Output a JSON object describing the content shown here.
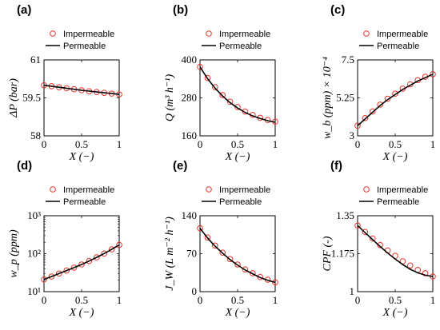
{
  "chart_data": [
    {
      "id": "a",
      "panel_label": "(a)",
      "type": "line",
      "xlabel": "X (−)",
      "ylabel": "ΔP (bar)",
      "xlim": [
        0,
        1
      ],
      "ylim": [
        58,
        61
      ],
      "yscale": "linear",
      "xticks": [
        0,
        0.5,
        1
      ],
      "xtick_labels": [
        "0",
        "0.5",
        "1"
      ],
      "yticks": [
        58,
        59.5,
        61
      ],
      "ytick_labels": [
        "58",
        "59.5",
        "61"
      ],
      "legend": {
        "placement": "top",
        "entries": [
          "Impermeable",
          "Permeable"
        ]
      },
      "series": [
        {
          "name": "Impermeable",
          "marker": "circle",
          "color": "#e8332a",
          "x": [
            0,
            0.1,
            0.2,
            0.3,
            0.4,
            0.5,
            0.6,
            0.7,
            0.8,
            0.9,
            1
          ],
          "y": [
            60.0,
            59.96,
            59.92,
            59.88,
            59.84,
            59.8,
            59.76,
            59.73,
            59.7,
            59.67,
            59.64
          ]
        },
        {
          "name": "Permeable",
          "marker": "line",
          "color": "#000000",
          "x": [
            0,
            0.25,
            0.5,
            0.75,
            1
          ],
          "y": [
            60.0,
            59.9,
            59.8,
            59.72,
            59.64
          ]
        }
      ]
    },
    {
      "id": "b",
      "panel_label": "(b)",
      "type": "line",
      "xlabel": "X (−)",
      "ylabel": "Q (m³ h⁻¹)",
      "xlim": [
        0,
        1
      ],
      "ylim": [
        160,
        400
      ],
      "yscale": "linear",
      "xticks": [
        0,
        0.5,
        1
      ],
      "xtick_labels": [
        "0",
        "0.5",
        "1"
      ],
      "yticks": [
        160,
        280,
        400
      ],
      "ytick_labels": [
        "160",
        "280",
        "400"
      ],
      "legend": {
        "placement": "top",
        "entries": [
          "Impermeable",
          "Permeable"
        ]
      },
      "series": [
        {
          "name": "Impermeable",
          "marker": "circle",
          "color": "#e8332a",
          "x": [
            0,
            0.1,
            0.2,
            0.3,
            0.4,
            0.5,
            0.6,
            0.7,
            0.8,
            0.9,
            1
          ],
          "y": [
            378,
            343,
            314,
            289,
            268,
            251,
            237,
            226,
            217,
            210,
            205
          ]
        },
        {
          "name": "Permeable",
          "marker": "line",
          "color": "#000000",
          "x": [
            0,
            0.1,
            0.2,
            0.3,
            0.4,
            0.5,
            0.6,
            0.7,
            0.8,
            0.9,
            1
          ],
          "y": [
            378,
            341,
            311,
            286,
            265,
            248,
            234,
            223,
            215,
            208,
            203
          ]
        }
      ]
    },
    {
      "id": "c",
      "panel_label": "(c)",
      "type": "line",
      "xlabel": "X (−)",
      "ylabel": "w_b (ppm) × 10⁻⁴",
      "xlim": [
        0,
        1
      ],
      "ylim": [
        3,
        7.5
      ],
      "yscale": "linear",
      "xticks": [
        0,
        0.5,
        1
      ],
      "xtick_labels": [
        "0",
        "0.5",
        "1"
      ],
      "yticks": [
        3,
        5.25,
        7.5
      ],
      "ytick_labels": [
        "3",
        "5.25",
        "7.5"
      ],
      "legend": {
        "placement": "top",
        "entries": [
          "Impermeable",
          "Permeable"
        ]
      },
      "series": [
        {
          "name": "Impermeable",
          "marker": "circle",
          "color": "#e8332a",
          "x": [
            0,
            0.1,
            0.2,
            0.3,
            0.4,
            0.5,
            0.6,
            0.7,
            0.8,
            0.9,
            1
          ],
          "y": [
            3.6,
            4.05,
            4.45,
            4.85,
            5.2,
            5.5,
            5.8,
            6.05,
            6.3,
            6.5,
            6.65
          ]
        },
        {
          "name": "Permeable",
          "marker": "line",
          "color": "#000000",
          "x": [
            0,
            0.1,
            0.2,
            0.3,
            0.4,
            0.5,
            0.6,
            0.7,
            0.8,
            0.9,
            1
          ],
          "y": [
            3.6,
            4.0,
            4.4,
            4.8,
            5.15,
            5.45,
            5.75,
            6.0,
            6.25,
            6.45,
            6.65
          ]
        }
      ]
    },
    {
      "id": "d",
      "panel_label": "(d)",
      "type": "line",
      "xlabel": "X (−)",
      "ylabel": "w_p (ppm)",
      "xlim": [
        0,
        1
      ],
      "ylim": [
        10,
        1000
      ],
      "yscale": "log",
      "xticks": [
        0,
        0.5,
        1
      ],
      "xtick_labels": [
        "0",
        "0.5",
        "1"
      ],
      "yticks": [
        10,
        100,
        1000
      ],
      "ytick_labels": [
        "10¹",
        "10²",
        "10³"
      ],
      "legend": {
        "placement": "top",
        "entries": [
          "Impermeable",
          "Permeable"
        ]
      },
      "series": [
        {
          "name": "Impermeable",
          "marker": "circle",
          "color": "#e8332a",
          "x": [
            0,
            0.1,
            0.2,
            0.3,
            0.4,
            0.5,
            0.6,
            0.7,
            0.8,
            0.9,
            1
          ],
          "y": [
            21,
            25,
            30,
            36,
            43,
            52,
            64,
            80,
            101,
            130,
            170
          ]
        },
        {
          "name": "Permeable",
          "marker": "line",
          "color": "#000000",
          "x": [
            0,
            0.1,
            0.2,
            0.3,
            0.4,
            0.5,
            0.6,
            0.7,
            0.8,
            0.9,
            1
          ],
          "y": [
            21,
            25,
            30,
            36,
            43,
            52,
            64,
            80,
            101,
            130,
            170
          ]
        }
      ]
    },
    {
      "id": "e",
      "panel_label": "(e)",
      "type": "line",
      "xlabel": "X (−)",
      "ylabel": "J_W (L m⁻² h⁻¹)",
      "xlim": [
        0,
        1
      ],
      "ylim": [
        0,
        140
      ],
      "yscale": "linear",
      "xticks": [
        0,
        0.5,
        1
      ],
      "xtick_labels": [
        "0",
        "0.5",
        "1"
      ],
      "yticks": [
        0,
        70,
        140
      ],
      "ytick_labels": [
        "0",
        "70",
        "140"
      ],
      "legend": {
        "placement": "top",
        "entries": [
          "Impermeable",
          "Permeable"
        ]
      },
      "series": [
        {
          "name": "Impermeable",
          "marker": "circle",
          "color": "#e8332a",
          "x": [
            0,
            0.1,
            0.2,
            0.3,
            0.4,
            0.5,
            0.6,
            0.7,
            0.8,
            0.9,
            1
          ],
          "y": [
            117,
            100,
            85,
            72,
            60,
            50,
            41,
            34,
            27,
            22,
            17
          ]
        },
        {
          "name": "Permeable",
          "marker": "line",
          "color": "#000000",
          "x": [
            0,
            0.1,
            0.2,
            0.3,
            0.4,
            0.5,
            0.6,
            0.7,
            0.8,
            0.9,
            1
          ],
          "y": [
            117,
            99,
            84,
            71,
            59,
            49,
            40,
            33,
            26,
            21,
            17
          ]
        }
      ]
    },
    {
      "id": "f",
      "panel_label": "(f)",
      "type": "line",
      "xlabel": "X (−)",
      "ylabel": "CPF (-)",
      "xlim": [
        0,
        1
      ],
      "ylim": [
        1,
        1.35
      ],
      "yscale": "linear",
      "xticks": [
        0,
        0.5,
        1
      ],
      "xtick_labels": [
        "0",
        "0.5",
        "1"
      ],
      "yticks": [
        1,
        1.175,
        1.35
      ],
      "ytick_labels": [
        "1",
        "1.175",
        "1.35"
      ],
      "legend": {
        "placement": "top",
        "entries": [
          "Impermeable",
          "Permeable"
        ]
      },
      "series": [
        {
          "name": "Impermeable",
          "marker": "circle",
          "color": "#e8332a",
          "x": [
            0,
            0.1,
            0.2,
            0.3,
            0.4,
            0.5,
            0.6,
            0.7,
            0.8,
            0.9,
            1
          ],
          "y": [
            1.305,
            1.275,
            1.245,
            1.215,
            1.19,
            1.165,
            1.14,
            1.12,
            1.1,
            1.085,
            1.07
          ]
        },
        {
          "name": "Permeable",
          "marker": "line",
          "color": "#000000",
          "x": [
            0,
            0.1,
            0.2,
            0.3,
            0.4,
            0.5,
            0.6,
            0.7,
            0.8,
            0.9,
            1
          ],
          "y": [
            1.305,
            1.272,
            1.24,
            1.208,
            1.178,
            1.15,
            1.125,
            1.103,
            1.087,
            1.076,
            1.07
          ]
        }
      ]
    }
  ]
}
